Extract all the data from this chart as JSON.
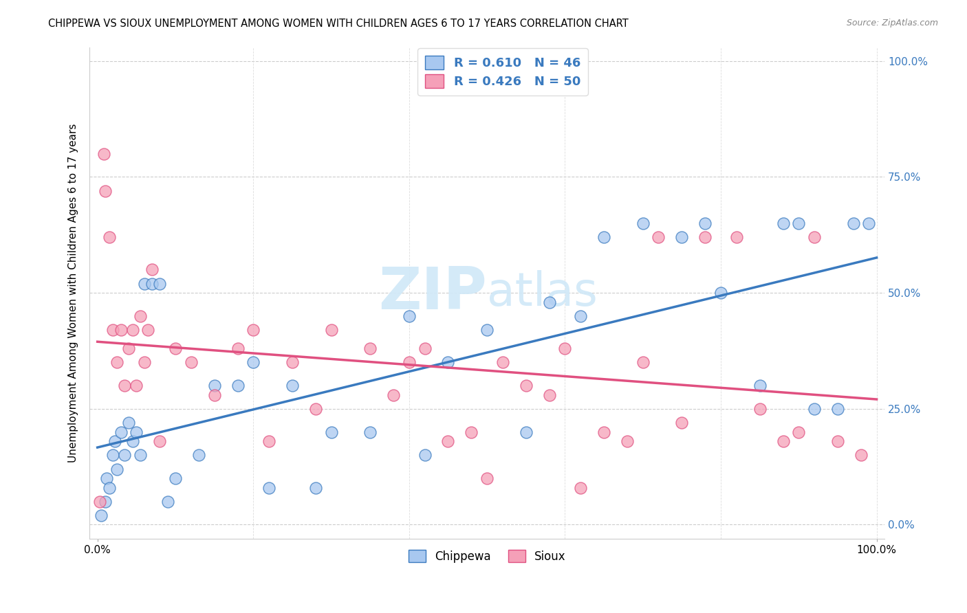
{
  "title": "CHIPPEWA VS SIOUX UNEMPLOYMENT AMONG WOMEN WITH CHILDREN AGES 6 TO 17 YEARS CORRELATION CHART",
  "source": "Source: ZipAtlas.com",
  "ylabel": "Unemployment Among Women with Children Ages 6 to 17 years",
  "ytick_labels": [
    "0.0%",
    "25.0%",
    "50.0%",
    "75.0%",
    "100.0%"
  ],
  "ytick_values": [
    0,
    25,
    50,
    75,
    100
  ],
  "xtick_values": [
    0,
    20,
    40,
    60,
    80,
    100
  ],
  "chippewa_color": "#a8c8f0",
  "sioux_color": "#f5a0b8",
  "chippewa_line_color": "#3a7abf",
  "sioux_line_color": "#e05080",
  "watermark_color": "#d0e8f8",
  "chippewa_x": [
    0.5,
    1.0,
    1.2,
    1.5,
    2.0,
    2.2,
    2.5,
    3.0,
    3.5,
    4.0,
    4.5,
    5.0,
    5.5,
    6.0,
    7.0,
    8.0,
    9.0,
    10.0,
    13.0,
    15.0,
    18.0,
    20.0,
    22.0,
    25.0,
    28.0,
    30.0,
    35.0,
    40.0,
    42.0,
    45.0,
    50.0,
    55.0,
    58.0,
    62.0,
    65.0,
    70.0,
    75.0,
    78.0,
    80.0,
    85.0,
    88.0,
    90.0,
    92.0,
    95.0,
    97.0,
    99.0
  ],
  "chippewa_y": [
    2.0,
    5.0,
    10.0,
    8.0,
    15.0,
    18.0,
    12.0,
    20.0,
    15.0,
    22.0,
    18.0,
    20.0,
    15.0,
    52.0,
    52.0,
    52.0,
    5.0,
    10.0,
    15.0,
    30.0,
    30.0,
    35.0,
    8.0,
    30.0,
    8.0,
    20.0,
    20.0,
    45.0,
    15.0,
    35.0,
    42.0,
    20.0,
    48.0,
    45.0,
    62.0,
    65.0,
    62.0,
    65.0,
    50.0,
    30.0,
    65.0,
    65.0,
    25.0,
    25.0,
    65.0,
    65.0
  ],
  "sioux_x": [
    0.3,
    0.8,
    1.0,
    1.5,
    2.0,
    2.5,
    3.0,
    3.5,
    4.0,
    4.5,
    5.0,
    5.5,
    6.0,
    6.5,
    7.0,
    8.0,
    10.0,
    12.0,
    15.0,
    18.0,
    20.0,
    22.0,
    25.0,
    28.0,
    30.0,
    35.0,
    38.0,
    40.0,
    42.0,
    45.0,
    48.0,
    50.0,
    52.0,
    55.0,
    58.0,
    60.0,
    62.0,
    65.0,
    68.0,
    70.0,
    72.0,
    75.0,
    78.0,
    82.0,
    85.0,
    88.0,
    90.0,
    92.0,
    95.0,
    98.0
  ],
  "sioux_y": [
    5.0,
    80.0,
    72.0,
    62.0,
    42.0,
    35.0,
    42.0,
    30.0,
    38.0,
    42.0,
    30.0,
    45.0,
    35.0,
    42.0,
    55.0,
    18.0,
    38.0,
    35.0,
    28.0,
    38.0,
    42.0,
    18.0,
    35.0,
    25.0,
    42.0,
    38.0,
    28.0,
    35.0,
    38.0,
    18.0,
    20.0,
    10.0,
    35.0,
    30.0,
    28.0,
    38.0,
    8.0,
    20.0,
    18.0,
    35.0,
    62.0,
    22.0,
    62.0,
    62.0,
    25.0,
    18.0,
    20.0,
    62.0,
    18.0,
    15.0
  ]
}
